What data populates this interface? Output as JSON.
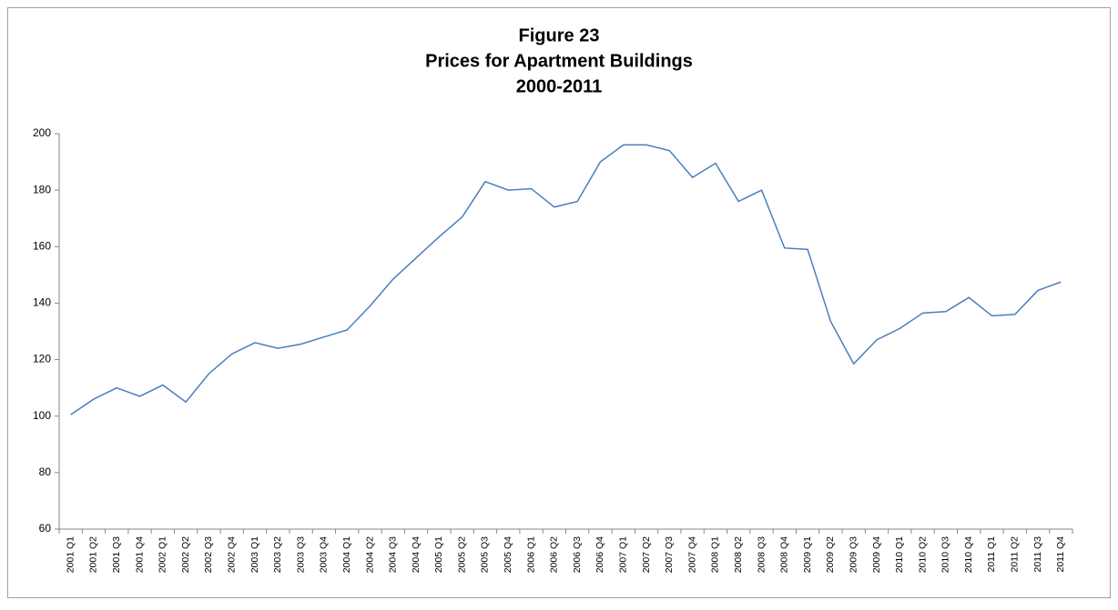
{
  "chart_data": {
    "type": "line",
    "title": [
      "Figure 23",
      "Prices for Apartment Buildings",
      "2000-2011"
    ],
    "categories": [
      "2001 Q1",
      "2001 Q2",
      "2001 Q3",
      "2001 Q4",
      "2002 Q1",
      "2002 Q2",
      "2002 Q3",
      "2002 Q4",
      "2003 Q1",
      "2003 Q2",
      "2003 Q3",
      "2003 Q4",
      "2004 Q1",
      "2004 Q2",
      "2004 Q3",
      "2004 Q4",
      "2005 Q1",
      "2005 Q2",
      "2005 Q3",
      "2005 Q4",
      "2006 Q1",
      "2006 Q2",
      "2006 Q3",
      "2006 Q4",
      "2007 Q1",
      "2007 Q2",
      "2007 Q3",
      "2007 Q4",
      "2008 Q1",
      "2008 Q2",
      "2008 Q3",
      "2008 Q4",
      "2009 Q1",
      "2009 Q2",
      "2009 Q3",
      "2009 Q4",
      "2010 Q1",
      "2010 Q2",
      "2010 Q3",
      "2010 Q4",
      "2011 Q1",
      "2011 Q2",
      "2011 Q3",
      "2011 Q4"
    ],
    "values": [
      100.5,
      106,
      110,
      107,
      111,
      105,
      115,
      122,
      126,
      124,
      125.5,
      128,
      130.5,
      139,
      148.5,
      156,
      163.5,
      170.5,
      183,
      180,
      180.5,
      174,
      176,
      190,
      196,
      196,
      194,
      184.5,
      189.5,
      176,
      180,
      159.5,
      159,
      133.5,
      118.5,
      127,
      131,
      136.5,
      137,
      142,
      135.5,
      136,
      144.5,
      147.5
    ],
    "color": "#4a7ebb",
    "ylim": [
      60,
      200
    ],
    "yticks": [
      60,
      80,
      100,
      120,
      140,
      160,
      180,
      200
    ],
    "grid": false
  }
}
